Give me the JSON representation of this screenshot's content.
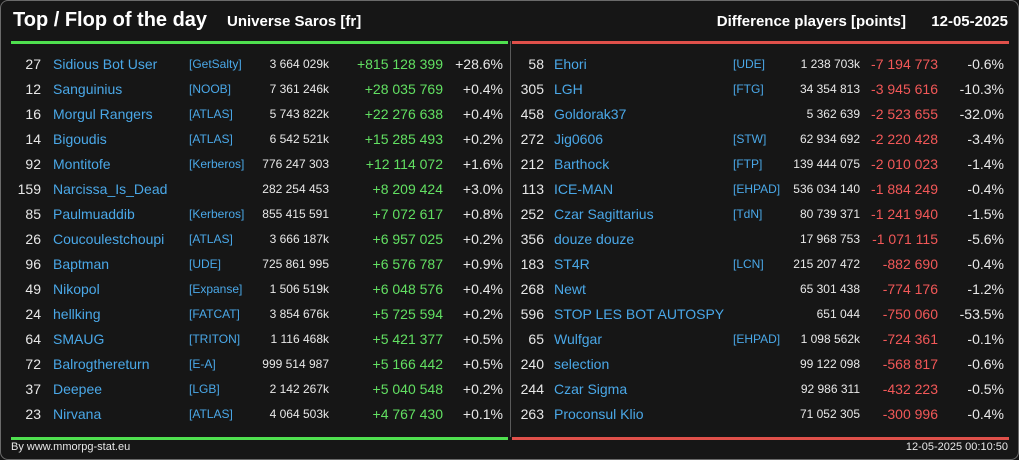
{
  "header": {
    "title": "Top / Flop of the day",
    "universe": "Universe Saros [fr]",
    "difference": "Difference players [points]",
    "date": "12-05-2025"
  },
  "top": [
    {
      "rank": "27",
      "name": "Sidious Bot User",
      "ally": "[GetSalty]",
      "points": "3 664 029k",
      "delta": "+815 128 399",
      "pct": "+28.6%"
    },
    {
      "rank": "12",
      "name": "Sanguinius",
      "ally": "[NOOB]",
      "points": "7 361 246k",
      "delta": "+28 035 769",
      "pct": "+0.4%"
    },
    {
      "rank": "16",
      "name": "Morgul Rangers",
      "ally": "[ATLAS]",
      "points": "5 743 822k",
      "delta": "+22 276 638",
      "pct": "+0.4%"
    },
    {
      "rank": "14",
      "name": "Bigoudis",
      "ally": "[ATLAS]",
      "points": "6 542 521k",
      "delta": "+15 285 493",
      "pct": "+0.2%"
    },
    {
      "rank": "92",
      "name": "Montitofe",
      "ally": "[Kerberos]",
      "points": "776 247 303",
      "delta": "+12 114 072",
      "pct": "+1.6%"
    },
    {
      "rank": "159",
      "name": "Narcissa_Is_Dead",
      "ally": "",
      "points": "282 254 453",
      "delta": "+8 209 424",
      "pct": "+3.0%"
    },
    {
      "rank": "85",
      "name": "Paulmuaddib",
      "ally": "[Kerberos]",
      "points": "855 415 591",
      "delta": "+7 072 617",
      "pct": "+0.8%"
    },
    {
      "rank": "26",
      "name": "Coucoulestchoupi",
      "ally": "[ATLAS]",
      "points": "3 666 187k",
      "delta": "+6 957 025",
      "pct": "+0.2%"
    },
    {
      "rank": "96",
      "name": "Baptman",
      "ally": "[UDE]",
      "points": "725 861 995",
      "delta": "+6 576 787",
      "pct": "+0.9%"
    },
    {
      "rank": "49",
      "name": "Nikopol",
      "ally": "[Expanse]",
      "points": "1 506 519k",
      "delta": "+6 048 576",
      "pct": "+0.4%"
    },
    {
      "rank": "24",
      "name": "hellking",
      "ally": "[FATCAT]",
      "points": "3 854 676k",
      "delta": "+5 725 594",
      "pct": "+0.2%"
    },
    {
      "rank": "64",
      "name": "SMAUG",
      "ally": "[TRITON]",
      "points": "1 116 468k",
      "delta": "+5 421 377",
      "pct": "+0.5%"
    },
    {
      "rank": "72",
      "name": "Balrogthereturn",
      "ally": "[E-A]",
      "points": "999 514 987",
      "delta": "+5 166 442",
      "pct": "+0.5%"
    },
    {
      "rank": "37",
      "name": "Deepee",
      "ally": "[LGB]",
      "points": "2 142 267k",
      "delta": "+5 040 548",
      "pct": "+0.2%"
    },
    {
      "rank": "23",
      "name": "Nirvana",
      "ally": "[ATLAS]",
      "points": "4 064 503k",
      "delta": "+4 767 430",
      "pct": "+0.1%"
    }
  ],
  "flop": [
    {
      "rank": "58",
      "name": "Ehori",
      "ally": "[UDE]",
      "points": "1 238 703k",
      "delta": "-7 194 773",
      "pct": "-0.6%"
    },
    {
      "rank": "305",
      "name": "LGH",
      "ally": "[FTG]",
      "points": "34 354 813",
      "delta": "-3 945 616",
      "pct": "-10.3%"
    },
    {
      "rank": "458",
      "name": "Goldorak37",
      "ally": "",
      "points": "5 362 639",
      "delta": "-2 523 655",
      "pct": "-32.0%"
    },
    {
      "rank": "272",
      "name": "Jig0606",
      "ally": "[STW]",
      "points": "62 934 692",
      "delta": "-2 220 428",
      "pct": "-3.4%"
    },
    {
      "rank": "212",
      "name": "Barthock",
      "ally": "[FTP]",
      "points": "139 444 075",
      "delta": "-2 010 023",
      "pct": "-1.4%"
    },
    {
      "rank": "113",
      "name": "ICE-MAN",
      "ally": "[EHPAD]",
      "points": "536 034 140",
      "delta": "-1 884 249",
      "pct": "-0.4%"
    },
    {
      "rank": "252",
      "name": "Czar Sagittarius",
      "ally": "[TdN]",
      "points": "80 739 371",
      "delta": "-1 241 940",
      "pct": "-1.5%"
    },
    {
      "rank": "356",
      "name": "douze douze",
      "ally": "",
      "points": "17 968 753",
      "delta": "-1 071 115",
      "pct": "-5.6%"
    },
    {
      "rank": "183",
      "name": "ST4R",
      "ally": "[LCN]",
      "points": "215 207 472",
      "delta": "-882 690",
      "pct": "-0.4%"
    },
    {
      "rank": "268",
      "name": "Newt",
      "ally": "",
      "points": "65 301 438",
      "delta": "-774 176",
      "pct": "-1.2%"
    },
    {
      "rank": "596",
      "name": "STOP LES BOT AUTOSPY",
      "ally": "",
      "points": "651 044",
      "delta": "-750 060",
      "pct": "-53.5%"
    },
    {
      "rank": "65",
      "name": "Wulfgar",
      "ally": "[EHPAD]",
      "points": "1 098 562k",
      "delta": "-724 361",
      "pct": "-0.1%"
    },
    {
      "rank": "240",
      "name": "selection",
      "ally": "",
      "points": "99 122 098",
      "delta": "-568 817",
      "pct": "-0.6%"
    },
    {
      "rank": "244",
      "name": "Czar Sigma",
      "ally": "",
      "points": "92 986 311",
      "delta": "-432 223",
      "pct": "-0.5%"
    },
    {
      "rank": "263",
      "name": "Proconsul Klio",
      "ally": "",
      "points": "71 052 305",
      "delta": "-300 996",
      "pct": "-0.4%"
    }
  ],
  "footer": {
    "source": "By www.mmorpg-stat.eu",
    "timestamp": "12-05-2025 00:10:50"
  },
  "colors": {
    "top_accent": "#4fe04f",
    "flop_accent": "#e0504a",
    "link": "#4aa8e8"
  }
}
